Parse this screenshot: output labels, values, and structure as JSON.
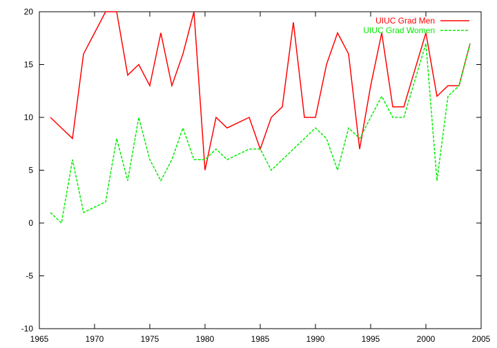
{
  "chart_data": {
    "type": "line",
    "title": "",
    "xlabel": "",
    "ylabel": "",
    "xlim": [
      1965,
      2005
    ],
    "ylim": [
      -10,
      20
    ],
    "xticks": [
      1965,
      1970,
      1975,
      1980,
      1985,
      1990,
      1995,
      2000,
      2005
    ],
    "yticks": [
      -10,
      -5,
      0,
      5,
      10,
      15,
      20
    ],
    "grid": false,
    "legend": "top-right",
    "series": [
      {
        "name": "UIUC Grad Men",
        "color": "#ff0000",
        "dash": "solid",
        "x": [
          1966,
          1968,
          1969,
          1971,
          1972,
          1973,
          1974,
          1975,
          1976,
          1977,
          1978,
          1979,
          1980,
          1981,
          1982,
          1984,
          1985,
          1986,
          1987,
          1988,
          1989,
          1990,
          1991,
          1992,
          1993,
          1994,
          1995,
          1996,
          1997,
          1998,
          2000,
          2001,
          2002,
          2003,
          2004
        ],
        "y": [
          10,
          8,
          16,
          20,
          20,
          14,
          15,
          13,
          18,
          13,
          16,
          20,
          5,
          10,
          9,
          10,
          7,
          10,
          11,
          19,
          10,
          10,
          15,
          18,
          16,
          7,
          13,
          18,
          11,
          11,
          18,
          12,
          13,
          13,
          17
        ]
      },
      {
        "name": "UIUC Grad Women",
        "color": "#00ee00",
        "dash": "dashed",
        "x": [
          1966,
          1967,
          1968,
          1969,
          1971,
          1972,
          1973,
          1974,
          1975,
          1976,
          1977,
          1978,
          1979,
          1980,
          1981,
          1982,
          1984,
          1985,
          1986,
          1990,
          1991,
          1992,
          1993,
          1994,
          1996,
          1997,
          1998,
          2000,
          2001,
          2002,
          2003,
          2004
        ],
        "y": [
          1,
          0,
          6,
          1,
          2,
          8,
          4,
          10,
          6,
          4,
          6,
          9,
          6,
          6,
          7,
          6,
          7,
          7,
          5,
          9,
          8,
          5,
          9,
          8,
          12,
          10,
          10,
          17,
          4,
          12,
          13,
          17
        ]
      }
    ]
  }
}
